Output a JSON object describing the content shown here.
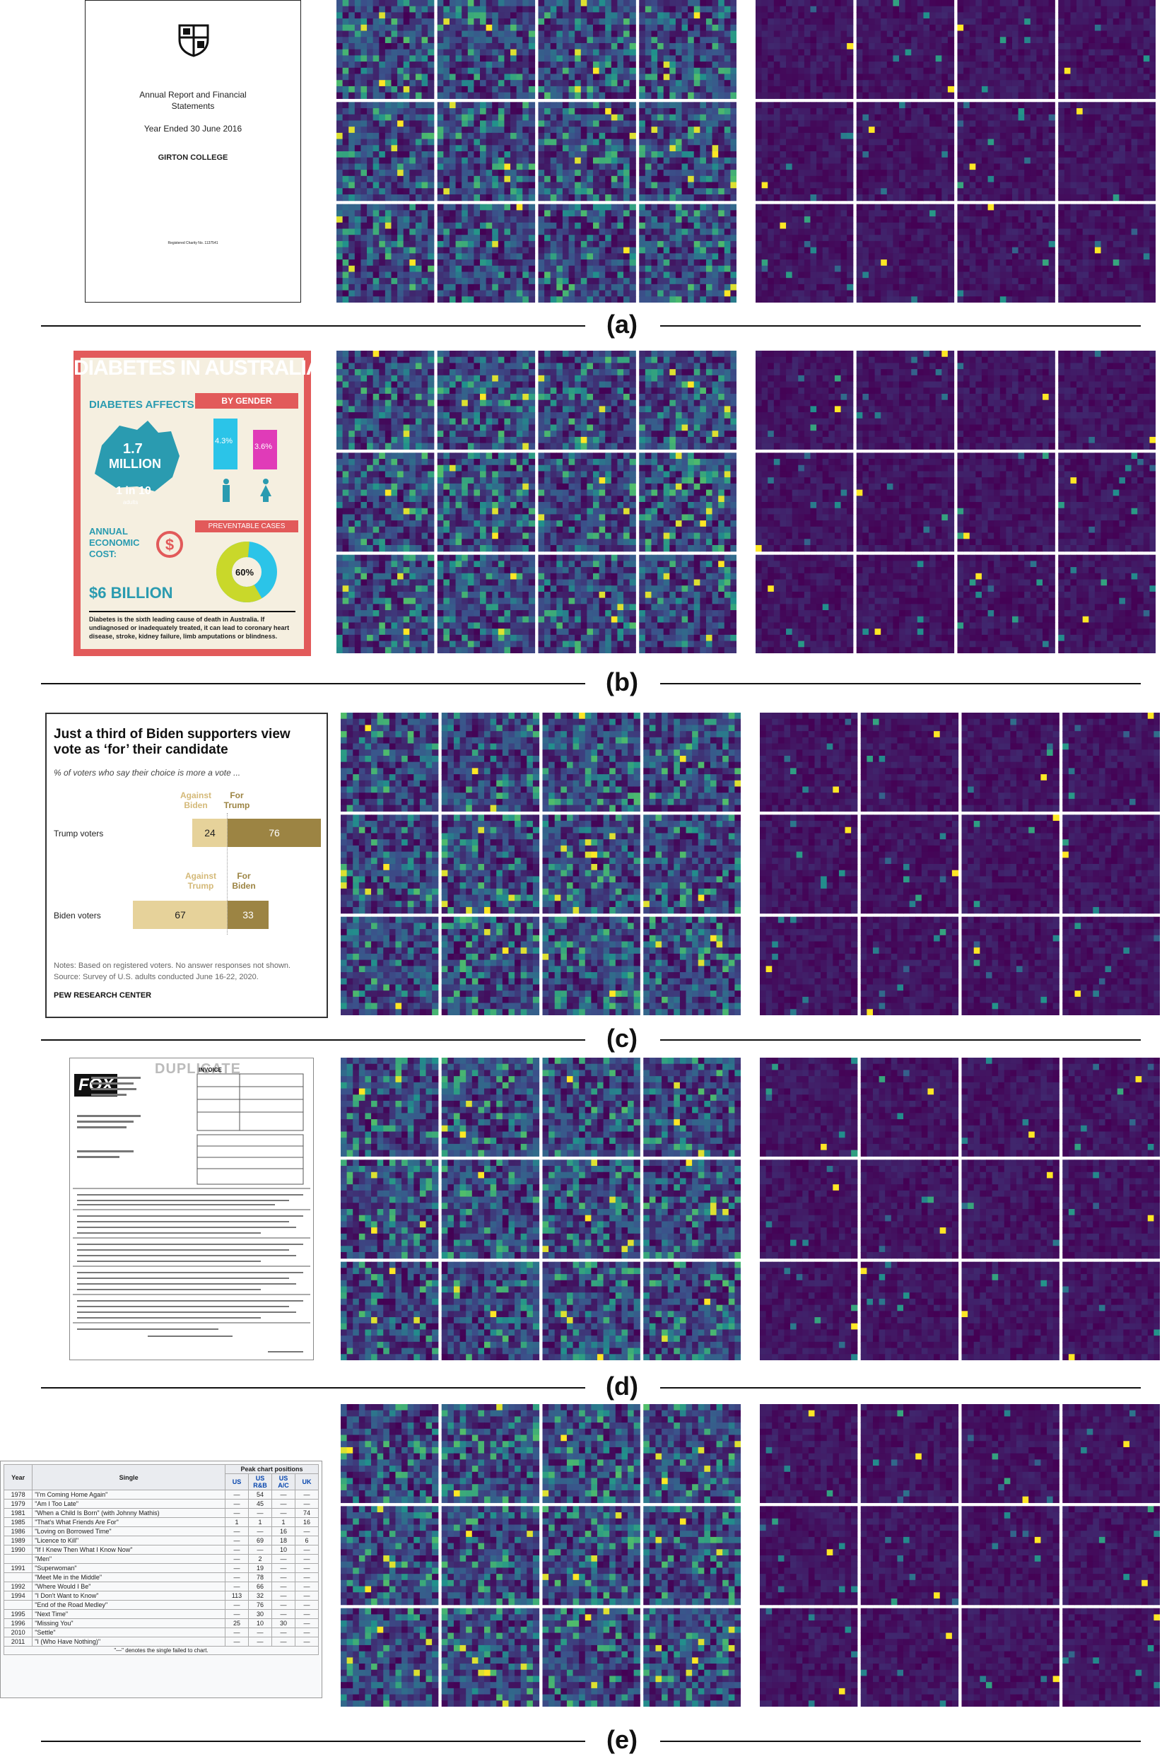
{
  "colors": {
    "viridis_low": "#440154",
    "viridis_mid": "#21918c",
    "viridis_high": "#fde725"
  },
  "panels": [
    {
      "caption": "(a)",
      "thumb": {
        "type": "report",
        "lines": [
          "Annual Report and Financial",
          "Statements",
          "Year Ended 30 June 2016",
          "GIRTON COLLEGE",
          "Registered Charity No. 1137541"
        ]
      }
    },
    {
      "caption": "(b)",
      "thumb": {
        "type": "infographic",
        "title": "DIABETES IN AUSTRALIA",
        "affects": "DIABETES AFFECTS:",
        "million": "1.7",
        "million_label": "MILLION",
        "one_in": "1 in 10",
        "adults": "adults",
        "by_gender": "BY GENDER",
        "male": "4.3%",
        "female": "3.6%",
        "annual": "ANNUAL ECONOMIC COST:",
        "cost": "$6 BILLION",
        "preventable": "PREVENTABLE CASES",
        "pct": "60%",
        "footer": "Diabetes is the sixth leading cause of death in Australia. If undiagnosed or inadequately treated, it can lead to coronary heart disease, stroke, kidney failure, limb amputations or blindness."
      }
    },
    {
      "caption": "(c)",
      "thumb": {
        "type": "chart",
        "title": "Just a third of Biden supporters view vote as ‘for’ their candidate",
        "subtitle": "% of voters who say their choice is more a vote ...",
        "h1a": "Against Biden",
        "h1b": "For Trump",
        "r1": "Trump voters",
        "v1a": "24",
        "v1b": "76",
        "h2a": "Against Trump",
        "h2b": "For Biden",
        "r2": "Biden voters",
        "v2a": "67",
        "v2b": "33",
        "notes": "Notes: Based on registered voters. No answer responses not shown.",
        "source": "Source: Survey of U.S. adults conducted June 16-22, 2020.",
        "org": "PEW RESEARCH CENTER"
      }
    },
    {
      "caption": "(d)",
      "thumb": {
        "type": "invoice",
        "logo": "FOX",
        "stamp": "DUPLICATE",
        "heading": "INVOICE"
      }
    },
    {
      "caption": "(e)",
      "thumb": {
        "type": "table",
        "h_year": "Year",
        "h_single": "Single",
        "h_peak": "Peak chart positions",
        "cols": [
          "US",
          "US R&B",
          "US A/C",
          "UK"
        ],
        "rows": [
          [
            "1978",
            "\"I'm Coming Home Again\"",
            "—",
            "54",
            "—",
            "—"
          ],
          [
            "1979",
            "\"Am I Too Late\"",
            "—",
            "45",
            "—",
            "—"
          ],
          [
            "1981",
            "\"When a Child Is Born\" (with Johnny Mathis)",
            "—",
            "—",
            "—",
            "74"
          ],
          [
            "1985",
            "\"That's What Friends Are For\"",
            "1",
            "1",
            "1",
            "16"
          ],
          [
            "1986",
            "\"Loving on Borrowed Time\"",
            "—",
            "—",
            "16",
            "—"
          ],
          [
            "1989",
            "\"Licence to Kill\"",
            "—",
            "69",
            "18",
            "6"
          ],
          [
            "1990",
            "\"If I Knew Then What I Know Now\"",
            "—",
            "—",
            "10",
            "—"
          ],
          [
            "",
            "\"Men\"",
            "—",
            "2",
            "—",
            "—"
          ],
          [
            "1991",
            "\"Superwoman\"",
            "—",
            "19",
            "—",
            "—"
          ],
          [
            "",
            "\"Meet Me in the Middle\"",
            "—",
            "78",
            "—",
            "—"
          ],
          [
            "1992",
            "\"Where Would I Be\"",
            "—",
            "66",
            "—",
            "—"
          ],
          [
            "1994",
            "\"I Don't Want to Know\"",
            "113",
            "32",
            "—",
            "—"
          ],
          [
            "",
            "\"End of the Road Medley\"",
            "—",
            "76",
            "—",
            "—"
          ],
          [
            "1995",
            "\"Next Time\"",
            "—",
            "30",
            "—",
            "—"
          ],
          [
            "1996",
            "\"Missing You\"",
            "25",
            "10",
            "30",
            "—"
          ],
          [
            "2010",
            "\"Settle\"",
            "—",
            "—",
            "—",
            "—"
          ],
          [
            "2011",
            "\"I (Who Have Nothing)\"",
            "—",
            "—",
            "—",
            "—"
          ]
        ],
        "footnote": "\"—\" denotes the single failed to chart."
      }
    }
  ]
}
